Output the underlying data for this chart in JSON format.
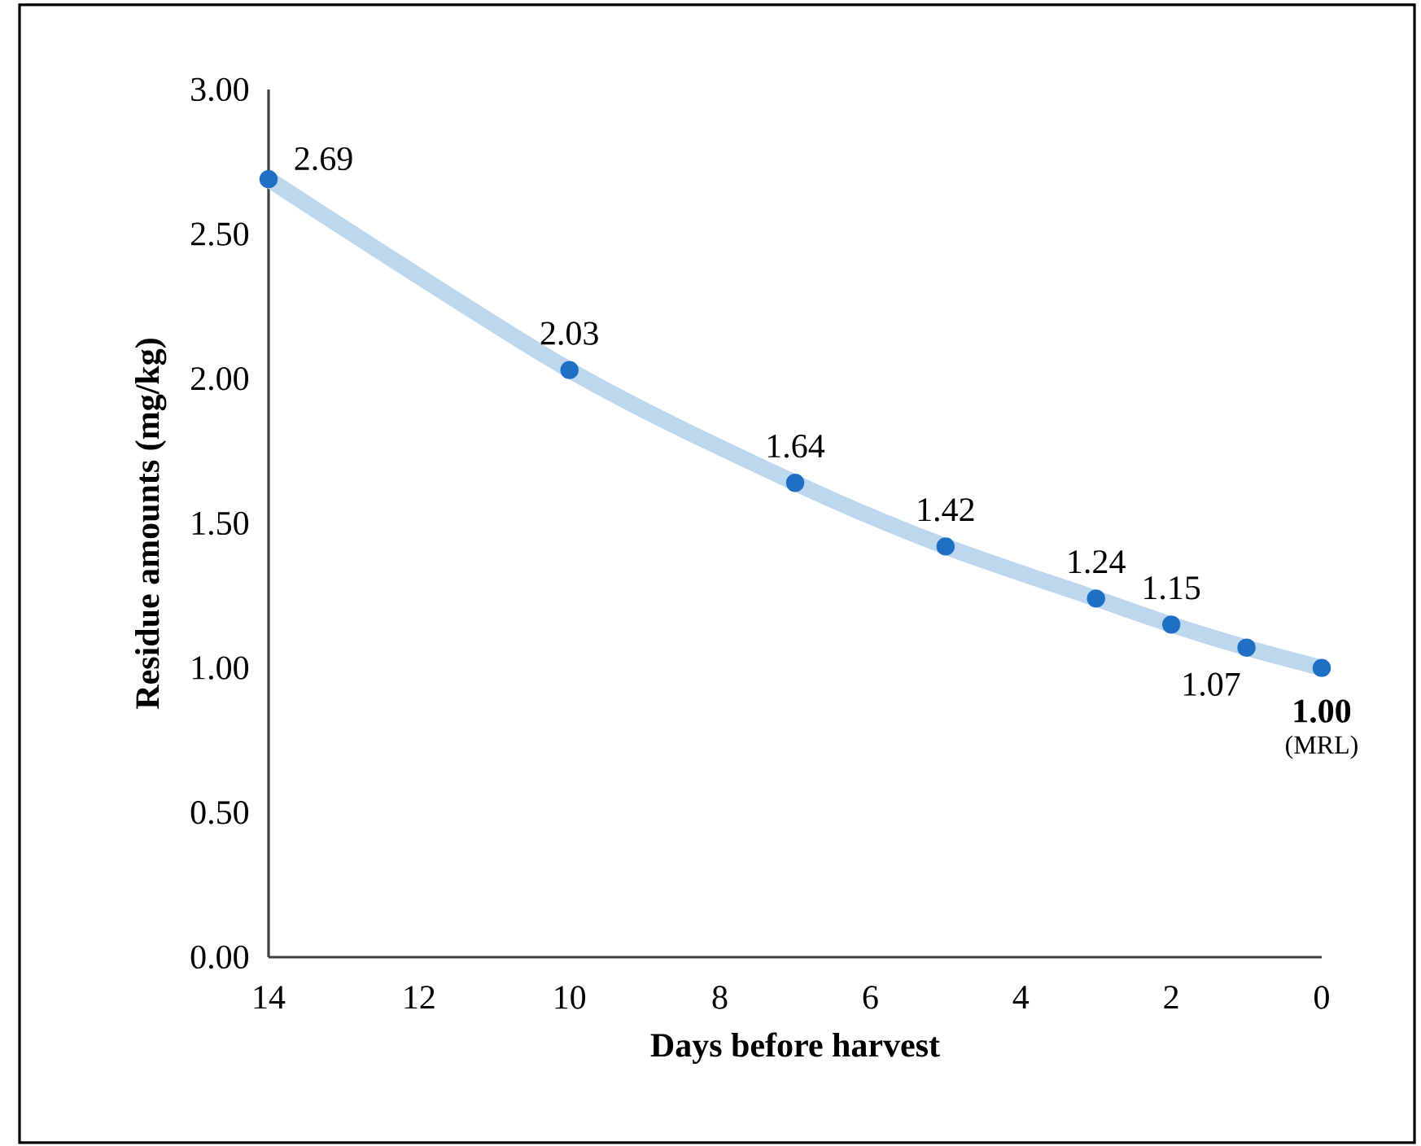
{
  "chart_data": {
    "type": "line",
    "xlabel": "Days before harvest",
    "ylabel": "Residue amounts (mg/kg)",
    "xlim": [
      14,
      0
    ],
    "xticks": [
      14,
      12,
      10,
      8,
      6,
      4,
      2,
      0
    ],
    "ylim": [
      0,
      3
    ],
    "yticks": [
      {
        "value": 0,
        "label": "0.00"
      },
      {
        "value": 0.5,
        "label": "0.50"
      },
      {
        "value": 1,
        "label": "1.00"
      },
      {
        "value": 1.5,
        "label": "1.50"
      },
      {
        "value": 2,
        "label": "2.00"
      },
      {
        "value": 2.5,
        "label": "2.50"
      },
      {
        "value": 3,
        "label": "3.00"
      }
    ],
    "grid": false,
    "marker": "circle",
    "series": [
      {
        "color": "#bdd7ee",
        "marker": "none",
        "x": [
          14,
          10,
          7,
          5,
          3,
          2,
          1,
          0
        ],
        "values": [
          2.69,
          2.03,
          1.64,
          1.42,
          1.24,
          1.15,
          1.07,
          1.0
        ]
      },
      {
        "type": "scatter",
        "color": "#1f6fc5",
        "x": [
          14,
          10,
          7,
          5,
          3,
          2,
          1,
          0
        ],
        "values": [
          2.69,
          2.03,
          1.64,
          1.42,
          1.24,
          1.15,
          1.07,
          1.0
        ],
        "value_labels": [
          "2.69",
          "2.03",
          "1.64",
          "1.42",
          "1.24",
          "1.15",
          "1.07",
          "1.00"
        ]
      }
    ],
    "annotations": [
      {
        "text": "(MRL)",
        "x": 0,
        "y": 1.0
      }
    ]
  }
}
